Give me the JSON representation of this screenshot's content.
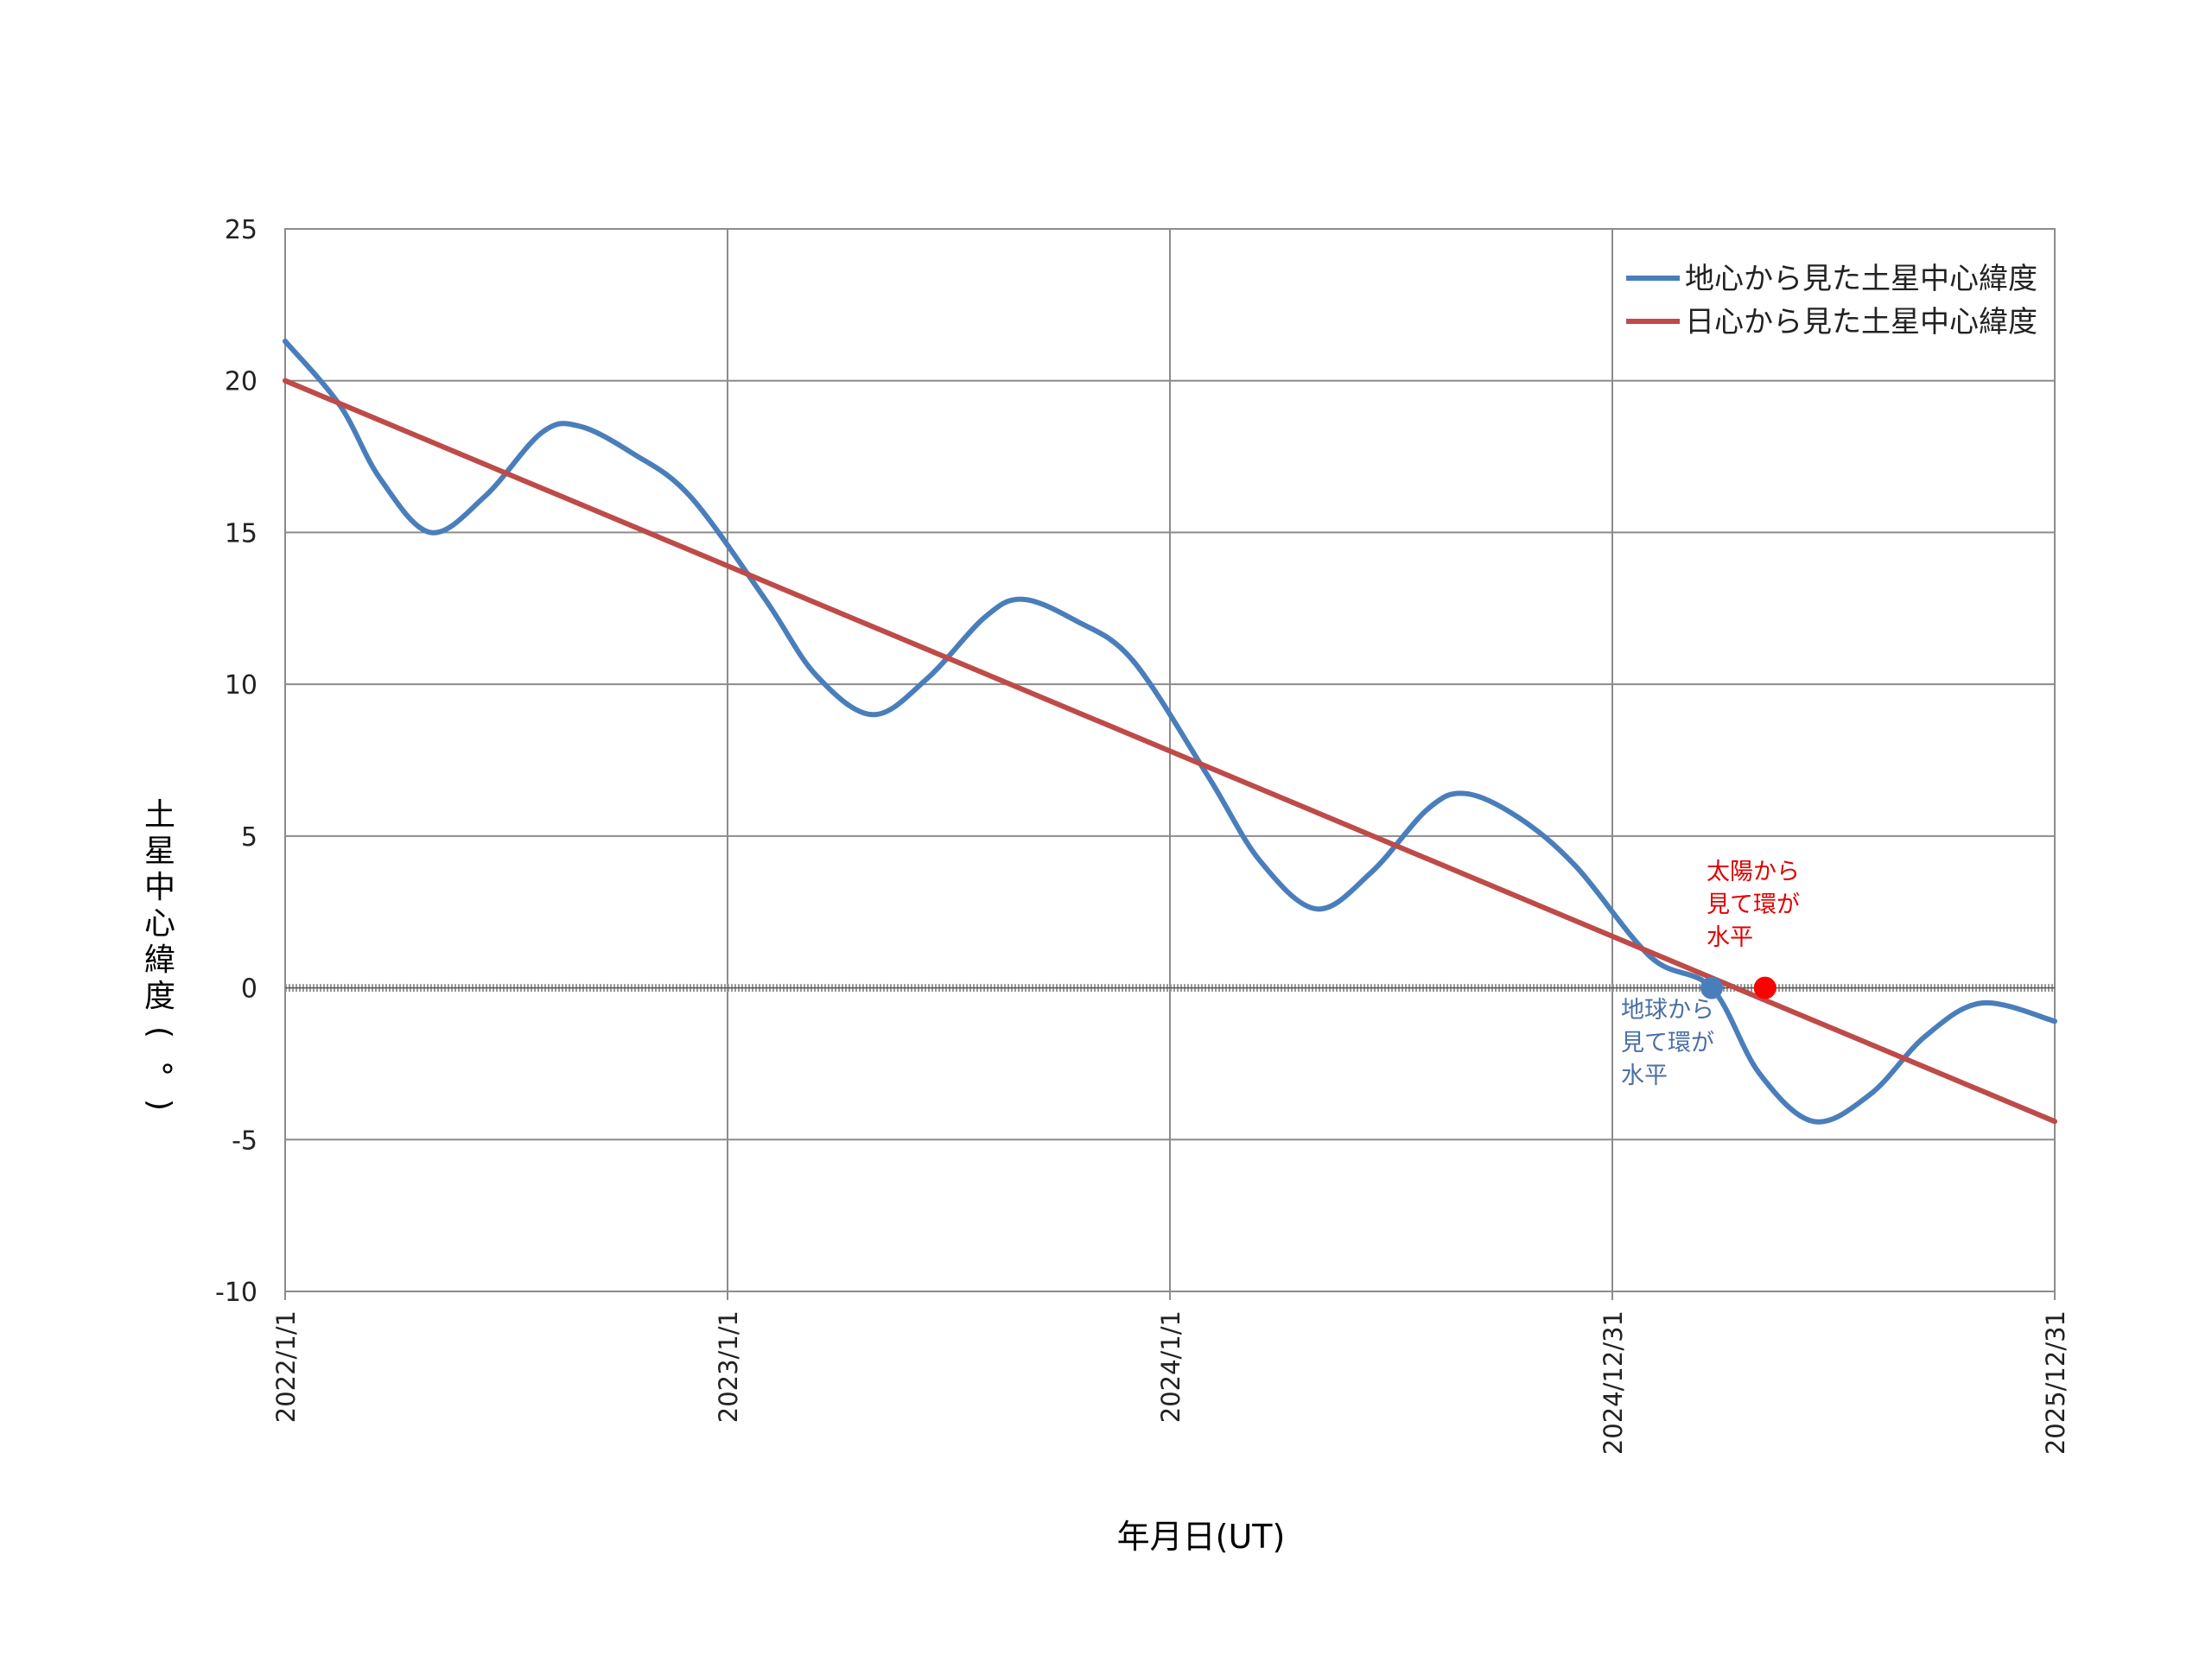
{
  "chart_data": {
    "type": "line",
    "title": "",
    "xlabel": "年月日(UT)",
    "ylabel": "土星中心緯度(°)",
    "x_range": [
      "2022/1/1",
      "2025/12/31"
    ],
    "ylim": [
      -10,
      25
    ],
    "yticks": [
      25,
      20,
      15,
      10,
      5,
      0,
      -5,
      -10
    ],
    "xtick_labels": [
      "2022/1/1",
      "2023/1/1",
      "2024/1/1",
      "2024/12/31",
      "2025/12/31"
    ],
    "grid": true,
    "legend_position": "top-right",
    "series": [
      {
        "name": "地心から見た土星中心緯度",
        "color": "#4a7ebb",
        "points": [
          [
            "2022/1/1",
            21.3
          ],
          [
            "2022/2/15",
            19.2
          ],
          [
            "2022/3/20",
            16.8
          ],
          [
            "2022/5/1",
            15.0
          ],
          [
            "2022/6/15",
            16.2
          ],
          [
            "2022/8/1",
            18.3
          ],
          [
            "2022/9/1",
            18.5
          ],
          [
            "2022/10/15",
            17.6
          ],
          [
            "2022/12/1",
            16.2
          ],
          [
            "2023/2/1",
            12.8
          ],
          [
            "2023/3/15",
            10.3
          ],
          [
            "2023/5/1",
            9.0
          ],
          [
            "2023/6/15",
            10.2
          ],
          [
            "2023/8/1",
            12.2
          ],
          [
            "2023/9/1",
            12.8
          ],
          [
            "2023/10/15",
            12.1
          ],
          [
            "2023/12/1",
            10.8
          ],
          [
            "2024/2/1",
            7.0
          ],
          [
            "2024/3/15",
            4.2
          ],
          [
            "2024/5/1",
            2.6
          ],
          [
            "2024/6/15",
            3.8
          ],
          [
            "2024/8/1",
            5.9
          ],
          [
            "2024/9/1",
            6.4
          ],
          [
            "2024/10/15",
            5.6
          ],
          [
            "2024/12/1",
            4.0
          ],
          [
            "2025/2/1",
            1.0
          ],
          [
            "2025/3/23",
            0.0
          ],
          [
            "2025/5/1",
            -2.8
          ],
          [
            "2025/6/15",
            -4.4
          ],
          [
            "2025/8/1",
            -3.5
          ],
          [
            "2025/9/15",
            -1.6
          ],
          [
            "2025/11/1",
            -0.5
          ],
          [
            "2025/12/31",
            -1.1
          ]
        ]
      },
      {
        "name": "日心から見た土星中心緯度",
        "color": "#be4b48",
        "points": [
          [
            "2022/1/1",
            20.0
          ],
          [
            "2025/12/31",
            -4.4
          ]
        ]
      }
    ],
    "markers": [
      {
        "x": "2025/3/23",
        "y": 0,
        "color": "#4a7ebb",
        "label": "地球から見て環が水平"
      },
      {
        "x": "2025/5/6",
        "y": 0,
        "color": "#ff0000",
        "label": "太陽から見て環が水平"
      }
    ],
    "annotations": [
      {
        "lines": [
          "太陽から",
          "見て環が",
          "水平"
        ],
        "color": "#e00000"
      },
      {
        "lines": [
          "地球から",
          "見て環が",
          "水平"
        ],
        "color": "#4a6fa5"
      }
    ]
  }
}
